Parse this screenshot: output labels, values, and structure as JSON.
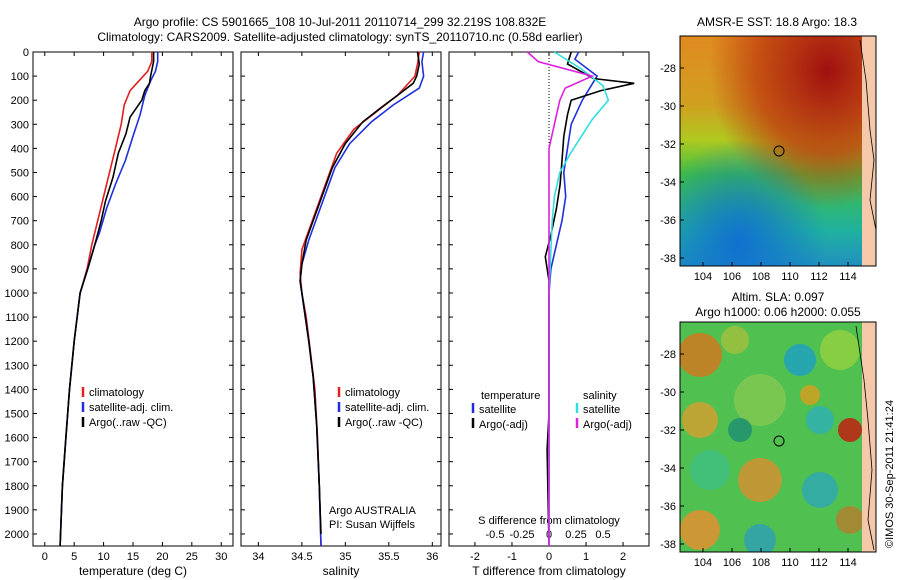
{
  "title_line1": "Argo profile: CS 5901665_108 10-Jul-2011 20110714_299 32.219S 108.832E",
  "title_line2": "Climatology: CARS2009. Satellite-adjusted climatology: synTS_20110710.nc (0.58d earlier)",
  "footer": "©IMOS 30-Sep-2011 21:41:24",
  "colors": {
    "climatology": "#e02020",
    "satellite": "#1f2fdd",
    "argo": "#000000",
    "sal_satellite": "#30e0e0",
    "sal_argo": "#e020e0"
  },
  "chart_data": [
    {
      "id": "temperature",
      "type": "line",
      "xlabel": "temperature (deg C)",
      "ylim": [
        2050,
        0
      ],
      "xlim": [
        -2,
        32
      ],
      "xticks": [
        0,
        5,
        10,
        15,
        20,
        25,
        30
      ],
      "yticks": [
        0,
        100,
        200,
        300,
        400,
        500,
        600,
        700,
        800,
        900,
        1000,
        1100,
        1200,
        1300,
        1400,
        1500,
        1600,
        1700,
        1800,
        1900,
        2000
      ],
      "legend": [
        "climatology",
        "satellite-adj. clim.",
        "Argo(..raw -QC)"
      ],
      "series": [
        {
          "name": "climatology",
          "points": [
            [
              18.2,
              0
            ],
            [
              18.2,
              40
            ],
            [
              17.5,
              80
            ],
            [
              16,
              120
            ],
            [
              14.5,
              160
            ],
            [
              13.5,
              220
            ],
            [
              13,
              300
            ],
            [
              12,
              400
            ],
            [
              11,
              500
            ],
            [
              10,
              600
            ],
            [
              9,
              700
            ],
            [
              8,
              800
            ],
            [
              7.2,
              900
            ],
            [
              6,
              1000
            ],
            [
              5,
              1200
            ],
            [
              4.2,
              1400
            ],
            [
              3.6,
              1600
            ],
            [
              3,
              1800
            ],
            [
              2.6,
              2050
            ]
          ]
        },
        {
          "name": "satellite-adj. clim.",
          "points": [
            [
              19.2,
              0
            ],
            [
              19.2,
              40
            ],
            [
              18.8,
              80
            ],
            [
              18,
              120
            ],
            [
              17,
              180
            ],
            [
              16.2,
              260
            ],
            [
              15,
              350
            ],
            [
              13.7,
              450
            ],
            [
              12,
              550
            ],
            [
              10.5,
              650
            ],
            [
              9.3,
              750
            ],
            [
              8.5,
              800
            ],
            [
              7.3,
              900
            ],
            [
              6,
              1000
            ],
            [
              5,
              1200
            ],
            [
              4.2,
              1400
            ],
            [
              3.6,
              1600
            ],
            [
              3,
              1800
            ],
            [
              2.6,
              2050
            ]
          ]
        },
        {
          "name": "Argo(..raw -QC)",
          "points": [
            [
              18.5,
              0
            ],
            [
              18.5,
              40
            ],
            [
              18,
              100
            ],
            [
              17.8,
              130
            ],
            [
              17,
              160
            ],
            [
              16.5,
              200
            ],
            [
              14.5,
              270
            ],
            [
              13.8,
              340
            ],
            [
              12.5,
              420
            ],
            [
              11.6,
              520
            ],
            [
              10.3,
              620
            ],
            [
              9.6,
              700
            ],
            [
              8.5,
              800
            ],
            [
              7.3,
              900
            ],
            [
              6,
              1000
            ],
            [
              5,
              1200
            ],
            [
              4.2,
              1400
            ],
            [
              3.6,
              1600
            ],
            [
              3,
              1800
            ],
            [
              2.6,
              2050
            ]
          ]
        }
      ]
    },
    {
      "id": "salinity",
      "type": "line",
      "xlabel": "salinity",
      "ylim": [
        2050,
        0
      ],
      "xlim": [
        33.8,
        36.1
      ],
      "xticks": [
        34,
        34.5,
        35,
        35.5,
        36
      ],
      "legend": [
        "climatology",
        "satellite-adj. clim.",
        "Argo(..raw -QC)"
      ],
      "annotation_line1": "Argo AUSTRALIA",
      "annotation_line2": "PI: Susan Wijffels",
      "series": [
        {
          "name": "climatology",
          "points": [
            [
              35.85,
              0
            ],
            [
              35.83,
              50
            ],
            [
              35.8,
              100
            ],
            [
              35.6,
              180
            ],
            [
              35.35,
              250
            ],
            [
              35.1,
              320
            ],
            [
              34.9,
              420
            ],
            [
              34.8,
              520
            ],
            [
              34.7,
              620
            ],
            [
              34.6,
              720
            ],
            [
              34.5,
              820
            ],
            [
              34.48,
              920
            ],
            [
              34.5,
              1000
            ],
            [
              34.55,
              1100
            ],
            [
              34.6,
              1250
            ],
            [
              34.65,
              1400
            ],
            [
              34.68,
              1600
            ],
            [
              34.7,
              1800
            ],
            [
              34.72,
              2050
            ]
          ]
        },
        {
          "name": "satellite-adj. clim.",
          "points": [
            [
              35.9,
              0
            ],
            [
              35.88,
              40
            ],
            [
              35.9,
              100
            ],
            [
              35.85,
              150
            ],
            [
              35.55,
              220
            ],
            [
              35.3,
              290
            ],
            [
              35.05,
              380
            ],
            [
              34.88,
              480
            ],
            [
              34.78,
              580
            ],
            [
              34.68,
              680
            ],
            [
              34.58,
              780
            ],
            [
              34.5,
              880
            ],
            [
              34.48,
              950
            ],
            [
              34.52,
              1050
            ],
            [
              34.58,
              1200
            ],
            [
              34.63,
              1350
            ],
            [
              34.67,
              1550
            ],
            [
              34.7,
              1800
            ],
            [
              34.72,
              2050
            ]
          ]
        },
        {
          "name": "Argo(..raw -QC)",
          "points": [
            [
              35.83,
              0
            ],
            [
              35.85,
              50
            ],
            [
              35.82,
              100
            ],
            [
              35.78,
              130
            ],
            [
              35.6,
              180
            ],
            [
              35.45,
              220
            ],
            [
              35.2,
              290
            ],
            [
              35.0,
              380
            ],
            [
              34.85,
              480
            ],
            [
              34.75,
              580
            ],
            [
              34.65,
              680
            ],
            [
              34.55,
              780
            ],
            [
              34.5,
              880
            ],
            [
              34.48,
              950
            ],
            [
              34.52,
              1050
            ],
            [
              34.58,
              1200
            ],
            [
              34.63,
              1350
            ],
            [
              34.67,
              1550
            ],
            [
              34.7,
              1800
            ],
            [
              34.72,
              2000
            ]
          ]
        }
      ]
    },
    {
      "id": "difference",
      "type": "line",
      "xlabel": "T difference from climatology",
      "top_label": "S difference from climatology",
      "ylim": [
        2050,
        0
      ],
      "xlim": [
        -2.7,
        2.7
      ],
      "xticks": [
        -2,
        -1,
        0,
        1,
        2
      ],
      "sticks": [
        -0.5,
        -0.25,
        0,
        0.25,
        0.5
      ],
      "legend_temperature_title": "temperature",
      "legend_salinity_title": "salinity",
      "legend_temperature": [
        "satellite",
        "Argo(-adj)"
      ],
      "legend_salinity": [
        "satellite",
        "Argo(-adj)"
      ],
      "series": [
        {
          "name": "T satellite",
          "points": [
            [
              0.8,
              0
            ],
            [
              0.7,
              30
            ],
            [
              1.3,
              100
            ],
            [
              0.9,
              200
            ],
            [
              0.6,
              300
            ],
            [
              0.5,
              400
            ],
            [
              0.4,
              500
            ],
            [
              0.45,
              600
            ],
            [
              0.35,
              700
            ],
            [
              0.2,
              800
            ],
            [
              0.05,
              900
            ],
            [
              0,
              1000
            ],
            [
              0,
              1500
            ],
            [
              0,
              2050
            ]
          ]
        },
        {
          "name": "T Argo(-adj)",
          "points": [
            [
              0.6,
              0
            ],
            [
              0.5,
              50
            ],
            [
              1.2,
              110
            ],
            [
              2.3,
              130
            ],
            [
              1.4,
              160
            ],
            [
              0.6,
              200
            ],
            [
              0.5,
              260
            ],
            [
              0.4,
              350
            ],
            [
              0.35,
              450
            ],
            [
              0.3,
              550
            ],
            [
              0.2,
              650
            ],
            [
              0.05,
              760
            ],
            [
              -0.1,
              850
            ],
            [
              0,
              950
            ],
            [
              0,
              1500
            ],
            [
              -0.05,
              1650
            ],
            [
              0,
              2050
            ]
          ]
        },
        {
          "name": "S satellite",
          "points": [
            [
              0.05,
              0
            ],
            [
              0.3,
              70
            ],
            [
              0.5,
              140
            ],
            [
              0.55,
              200
            ],
            [
              0.4,
              280
            ],
            [
              0.3,
              350
            ],
            [
              0.2,
              420
            ],
            [
              0.1,
              500
            ],
            [
              0.05,
              600
            ],
            [
              0.03,
              700
            ],
            [
              0,
              1000
            ],
            [
              0,
              2050
            ]
          ]
        },
        {
          "name": "S Argo(-adj)",
          "points": [
            [
              -0.2,
              0
            ],
            [
              -0.1,
              40
            ],
            [
              0.4,
              100
            ],
            [
              0.15,
              150
            ],
            [
              0.1,
              200
            ],
            [
              0.05,
              300
            ],
            [
              0,
              400
            ],
            [
              0,
              1600
            ],
            [
              0,
              2050
            ]
          ]
        }
      ]
    }
  ],
  "maps": {
    "sst": {
      "title": "AMSR-E SST: 18.8  Argo: 18.3",
      "xticks": [
        "104",
        "106",
        "108",
        "110",
        "112",
        "114"
      ],
      "yticks": [
        "-28",
        "-30",
        "-32",
        "-34",
        "-36",
        "-38"
      ]
    },
    "sla": {
      "title_line1": "Altim. SLA: 0.097",
      "title_line2": "Argo h1000: 0.06 h2000: 0.055",
      "xticks": [
        "104",
        "106",
        "108",
        "110",
        "112",
        "114"
      ],
      "yticks": [
        "-28",
        "-30",
        "-32",
        "-34",
        "-36",
        "-38"
      ]
    }
  }
}
